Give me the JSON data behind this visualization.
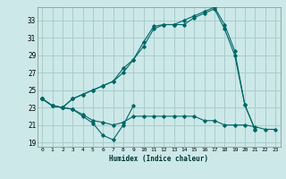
{
  "title": "",
  "xlabel": "Humidex (Indice chaleur)",
  "background_color": "#cce8e8",
  "grid_color": "#aacccc",
  "line_color": "#006666",
  "xlim": [
    -0.5,
    23.5
  ],
  "ylim": [
    18.5,
    34.5
  ],
  "xticks": [
    0,
    1,
    2,
    3,
    4,
    5,
    6,
    7,
    8,
    9,
    10,
    11,
    12,
    13,
    14,
    15,
    16,
    17,
    18,
    19,
    20,
    21,
    22,
    23
  ],
  "yticks": [
    19,
    21,
    23,
    25,
    27,
    29,
    31,
    33
  ],
  "series": [
    [
      24.0,
      23.2,
      23.0,
      22.8,
      22.0,
      21.2,
      19.8,
      19.3,
      21.0,
      23.2,
      null,
      null,
      null,
      null,
      null,
      null,
      null,
      null,
      null,
      null,
      null,
      null,
      null,
      null
    ],
    [
      24.0,
      23.2,
      23.0,
      22.8,
      22.2,
      21.5,
      21.3,
      21.0,
      21.3,
      22.0,
      22.0,
      22.0,
      22.0,
      22.0,
      22.0,
      22.0,
      21.5,
      21.5,
      21.0,
      21.0,
      21.0,
      20.8,
      20.5,
      20.5
    ],
    [
      24.0,
      23.2,
      23.0,
      24.0,
      24.5,
      25.0,
      25.5,
      26.0,
      27.0,
      28.5,
      30.5,
      32.3,
      32.5,
      32.5,
      32.5,
      33.3,
      33.8,
      34.3,
      32.0,
      29.0,
      23.3,
      20.5,
      null,
      null
    ],
    [
      24.0,
      23.2,
      23.0,
      24.0,
      24.5,
      25.0,
      25.5,
      26.0,
      27.5,
      28.5,
      30.0,
      32.0,
      32.5,
      32.5,
      33.0,
      33.5,
      34.0,
      34.5,
      32.5,
      29.5,
      23.3,
      20.5,
      null,
      null
    ]
  ]
}
